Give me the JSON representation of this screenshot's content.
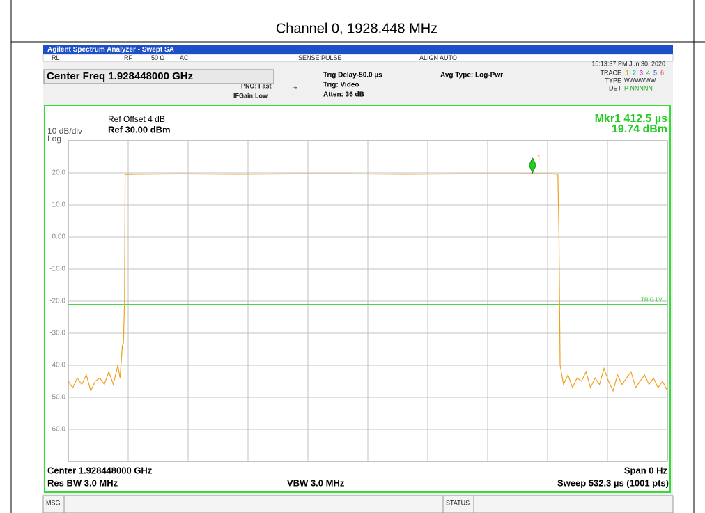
{
  "page_title": "Channel 0, 1928.448 MHz",
  "window_title": "Agilent Spectrum Analyzer - Swept SA",
  "status_row": [
    "RL",
    "RF",
    "50 Ω",
    "AC",
    "SENSE:PULSE",
    "ALIGN AUTO",
    "10:13:37 PM Jun 30, 2020"
  ],
  "center_freq": "Center Freq 1.928448000 GHz",
  "pno": "PNO: Fast",
  "ifgain": "IFGain:Low",
  "trig_delay": "Trig Delay-50.0 µs",
  "trig": "Trig: Video",
  "atten": "Atten: 36 dB",
  "avg_type": "Avg Type: Log-Pwr",
  "trace_panel": {
    "trace": "TRACE",
    "trace_numbers": [
      "1",
      "2",
      "3",
      "4",
      "5",
      "6"
    ],
    "type": "TYPE",
    "type_value": "WWWWWW",
    "det": "DET",
    "det_value": "P NNNNN"
  },
  "ref_offset": "Ref Offset 4 dB",
  "ref": "Ref 30.00 dBm",
  "scale": "10 dB/div",
  "scale_type": "Log",
  "mkr_readout": [
    "Mkr1 412.5 µs",
    "19.74 dBm"
  ],
  "footer": {
    "center": "Center 1.928448000 GHz",
    "span": "Span 0 Hz",
    "rbw": "Res BW 3.0 MHz",
    "vbw": "VBW 3.0 MHz",
    "sweep": "Sweep  532.3 µs (1001 pts)"
  },
  "msg": "MSG",
  "status": "STATUS",
  "chart_data": {
    "type": "line",
    "xlim": [
      0,
      532.3
    ],
    "ylim": [
      -70,
      30
    ],
    "yticks": [
      {
        "value": 20,
        "label": "20.0"
      },
      {
        "value": 10,
        "label": "10.0"
      },
      {
        "value": 0,
        "label": "0.00"
      },
      {
        "value": -10,
        "label": "-10.0"
      },
      {
        "value": -20,
        "label": "-20.0"
      },
      {
        "value": -30,
        "label": "-30.0"
      },
      {
        "value": -40,
        "label": "-40.0"
      },
      {
        "value": -50,
        "label": "-50.0"
      },
      {
        "value": -60,
        "label": "-60.0"
      }
    ],
    "grid": true,
    "series": [
      {
        "color": "#f0a020",
        "x": [
          0,
          4,
          8,
          12,
          16,
          20,
          24,
          28,
          32,
          36,
          40,
          44,
          46,
          48,
          49,
          50,
          50.5,
          60,
          100,
          150,
          200,
          250,
          300,
          350,
          400,
          412.5,
          430,
          435,
          436,
          437,
          440,
          444,
          448,
          452,
          456,
          460,
          464,
          468,
          472,
          476,
          480,
          484,
          488,
          492,
          496,
          500,
          504,
          508,
          512,
          516,
          520,
          524,
          528,
          532.3
        ],
        "values": [
          -45,
          -47,
          -44,
          -46,
          -43,
          -48,
          -45,
          -44,
          -46,
          -42,
          -46,
          -40,
          -44,
          -34,
          -33,
          -20,
          19.5,
          19.6,
          19.7,
          19.6,
          19.7,
          19.7,
          19.6,
          19.7,
          19.7,
          19.74,
          19.7,
          19.6,
          0,
          -40,
          -46,
          -43,
          -47,
          -44,
          -45,
          -42,
          -47,
          -44,
          -46,
          -41,
          -45,
          -48,
          -43,
          -46,
          -44,
          -42,
          -47,
          -45,
          -43,
          -46,
          -44,
          -47,
          -45,
          -48
        ]
      }
    ],
    "marker": {
      "x": 412.5,
      "y": 19.74,
      "label": "1",
      "color": "#22cc22"
    },
    "trig_level": {
      "value": -21,
      "label": "TRIG LVL",
      "color": "#33cc33"
    }
  }
}
